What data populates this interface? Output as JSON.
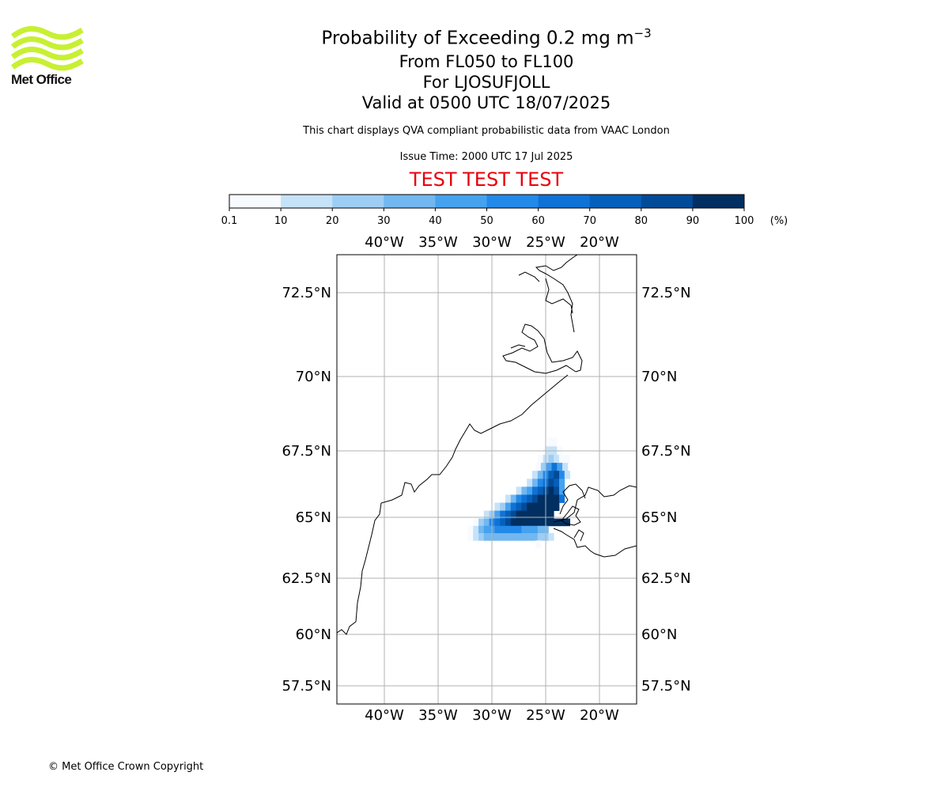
{
  "logo": {
    "name": "Met Office",
    "color": "#c8f032"
  },
  "title": {
    "line1_main": "Probability of Exceeding 0.2 mg m",
    "line1_sup": "−3",
    "line2": "From FL050 to FL100",
    "line3": "For LJOSUFJOLL",
    "line4": "Valid at 0500 UTC 18/07/2025"
  },
  "subtitle": "This chart displays QVA compliant probabilistic data from VAAC London",
  "issue_time": "Issue Time: 2000 UTC 17 Jul 2025",
  "test_banner": "TEST TEST TEST",
  "test_color": "#e8000b",
  "colorbar": {
    "ticks": [
      "0.1",
      "10",
      "20",
      "30",
      "40",
      "50",
      "60",
      "70",
      "80",
      "90",
      "100"
    ],
    "colors": [
      "#f7fbff",
      "#c6e2f8",
      "#9ecdf4",
      "#72b7f0",
      "#46a2ee",
      "#2389e9",
      "#0f72d6",
      "#0560bb",
      "#024b98",
      "#022f62"
    ],
    "unit": "(%)"
  },
  "map": {
    "lon_ticks_top": [
      "40°W",
      "35°W",
      "30°W",
      "25°W",
      "20°W"
    ],
    "lon_ticks_bottom": [
      "40°W",
      "35°W",
      "30°W",
      "25°W",
      "20°W"
    ],
    "lat_ticks_left": [
      "72.5°N",
      "70°N",
      "67.5°N",
      "65°N",
      "62.5°N",
      "60°N",
      "57.5°N"
    ],
    "lat_ticks_right": [
      "72.5°N",
      "70°N",
      "67.5°N",
      "65°N",
      "62.5°N",
      "60°N",
      "57.5°N"
    ],
    "gridline_color": "#b0b0b0",
    "coastline_color": "#000000"
  },
  "plume": {
    "description_levels": "probability % per grid cell",
    "cells": [
      [
        67.8,
        -24.5,
        5
      ],
      [
        67.8,
        -24.2,
        5
      ],
      [
        67.5,
        -25.0,
        5
      ],
      [
        67.5,
        -24.7,
        10
      ],
      [
        67.5,
        -24.2,
        10
      ],
      [
        67.5,
        -23.7,
        5
      ],
      [
        67.2,
        -25.5,
        5
      ],
      [
        67.2,
        -25.0,
        10
      ],
      [
        67.2,
        -24.5,
        20
      ],
      [
        67.2,
        -24.0,
        10
      ],
      [
        67.2,
        -23.5,
        5
      ],
      [
        67.2,
        -23.0,
        5
      ],
      [
        66.9,
        -25.7,
        5
      ],
      [
        66.9,
        -25.2,
        20
      ],
      [
        66.9,
        -24.7,
        40
      ],
      [
        66.9,
        -24.2,
        60
      ],
      [
        66.9,
        -23.7,
        40
      ],
      [
        66.9,
        -23.2,
        10
      ],
      [
        66.6,
        -26.0,
        10
      ],
      [
        66.6,
        -25.5,
        30
      ],
      [
        66.6,
        -25.0,
        50
      ],
      [
        66.6,
        -24.5,
        70
      ],
      [
        66.6,
        -24.0,
        80
      ],
      [
        66.6,
        -23.5,
        50
      ],
      [
        66.6,
        -23.0,
        10
      ],
      [
        66.3,
        -26.5,
        10
      ],
      [
        66.3,
        -26.0,
        30
      ],
      [
        66.3,
        -25.5,
        50
      ],
      [
        66.3,
        -25.0,
        60
      ],
      [
        66.3,
        -24.5,
        80
      ],
      [
        66.3,
        -24.0,
        70
      ],
      [
        66.3,
        -23.5,
        40
      ],
      [
        66.0,
        -27.5,
        10
      ],
      [
        66.0,
        -27.0,
        30
      ],
      [
        66.0,
        -26.5,
        40
      ],
      [
        66.0,
        -26.0,
        60
      ],
      [
        66.0,
        -25.5,
        70
      ],
      [
        66.0,
        -25.0,
        80
      ],
      [
        66.0,
        -24.5,
        90
      ],
      [
        66.0,
        -24.0,
        80
      ],
      [
        66.0,
        -23.5,
        40
      ],
      [
        65.7,
        -28.5,
        10
      ],
      [
        65.7,
        -28.0,
        30
      ],
      [
        65.7,
        -27.5,
        50
      ],
      [
        65.7,
        -27.0,
        60
      ],
      [
        65.7,
        -26.5,
        70
      ],
      [
        65.7,
        -26.0,
        80
      ],
      [
        65.7,
        -25.5,
        90
      ],
      [
        65.7,
        -25.0,
        100
      ],
      [
        65.7,
        -24.5,
        100
      ],
      [
        65.7,
        -24.0,
        90
      ],
      [
        65.7,
        -23.5,
        60
      ],
      [
        65.4,
        -29.5,
        10
      ],
      [
        65.4,
        -29.0,
        20
      ],
      [
        65.4,
        -28.5,
        40
      ],
      [
        65.4,
        -28.0,
        60
      ],
      [
        65.4,
        -27.5,
        70
      ],
      [
        65.4,
        -27.0,
        80
      ],
      [
        65.4,
        -26.5,
        90
      ],
      [
        65.4,
        -26.0,
        100
      ],
      [
        65.4,
        -25.5,
        100
      ],
      [
        65.4,
        -25.0,
        100
      ],
      [
        65.4,
        -24.5,
        100
      ],
      [
        65.4,
        -24.0,
        90
      ],
      [
        65.1,
        -30.5,
        10
      ],
      [
        65.1,
        -30.0,
        20
      ],
      [
        65.1,
        -29.5,
        40
      ],
      [
        65.1,
        -29.0,
        60
      ],
      [
        65.1,
        -28.5,
        70
      ],
      [
        65.1,
        -28.0,
        80
      ],
      [
        65.1,
        -27.5,
        90
      ],
      [
        65.1,
        -27.0,
        90
      ],
      [
        65.1,
        -26.5,
        100
      ],
      [
        65.1,
        -26.0,
        100
      ],
      [
        65.1,
        -25.5,
        100
      ],
      [
        65.1,
        -25.0,
        100
      ],
      [
        65.1,
        -24.5,
        100
      ],
      [
        64.8,
        -31.5,
        5
      ],
      [
        64.8,
        -31.0,
        20
      ],
      [
        64.8,
        -30.5,
        30
      ],
      [
        64.8,
        -30.0,
        50
      ],
      [
        64.8,
        -29.5,
        60
      ],
      [
        64.8,
        -29.0,
        70
      ],
      [
        64.8,
        -28.5,
        80
      ],
      [
        64.8,
        -28.0,
        90
      ],
      [
        64.8,
        -27.5,
        100
      ],
      [
        64.8,
        -27.0,
        100
      ],
      [
        64.8,
        -26.5,
        100
      ],
      [
        64.8,
        -26.0,
        100
      ],
      [
        64.8,
        -25.5,
        100
      ],
      [
        64.8,
        -25.0,
        100
      ],
      [
        64.8,
        -24.5,
        100
      ],
      [
        64.8,
        -24.0,
        100
      ],
      [
        64.8,
        -23.5,
        100
      ],
      [
        64.8,
        -23.0,
        100
      ],
      [
        64.5,
        -32.0,
        5
      ],
      [
        64.5,
        -31.5,
        10
      ],
      [
        64.5,
        -31.0,
        30
      ],
      [
        64.5,
        -30.5,
        40
      ],
      [
        64.5,
        -30.0,
        40
      ],
      [
        64.5,
        -29.5,
        50
      ],
      [
        64.5,
        -29.0,
        50
      ],
      [
        64.5,
        -28.5,
        50
      ],
      [
        64.5,
        -28.0,
        50
      ],
      [
        64.5,
        -27.5,
        50
      ],
      [
        64.5,
        -27.0,
        40
      ],
      [
        64.5,
        -26.5,
        40
      ],
      [
        64.5,
        -26.0,
        40
      ],
      [
        64.5,
        -25.5,
        30
      ],
      [
        64.5,
        -25.0,
        30
      ],
      [
        64.2,
        -32.0,
        5
      ],
      [
        64.2,
        -31.5,
        10
      ],
      [
        64.2,
        -31.0,
        20
      ],
      [
        64.2,
        -30.5,
        30
      ],
      [
        64.2,
        -30.0,
        30
      ],
      [
        64.2,
        -29.5,
        30
      ],
      [
        64.2,
        -29.0,
        30
      ],
      [
        64.2,
        -28.5,
        30
      ],
      [
        64.2,
        -28.0,
        30
      ],
      [
        64.2,
        -27.5,
        30
      ],
      [
        64.2,
        -27.0,
        30
      ],
      [
        64.2,
        -26.5,
        30
      ],
      [
        64.2,
        -26.0,
        30
      ],
      [
        64.2,
        -25.5,
        20
      ],
      [
        64.2,
        -25.0,
        20
      ],
      [
        64.2,
        -24.5,
        10
      ],
      [
        63.9,
        -25.7,
        5
      ]
    ]
  },
  "copyright": "© Met Office Crown Copyright"
}
